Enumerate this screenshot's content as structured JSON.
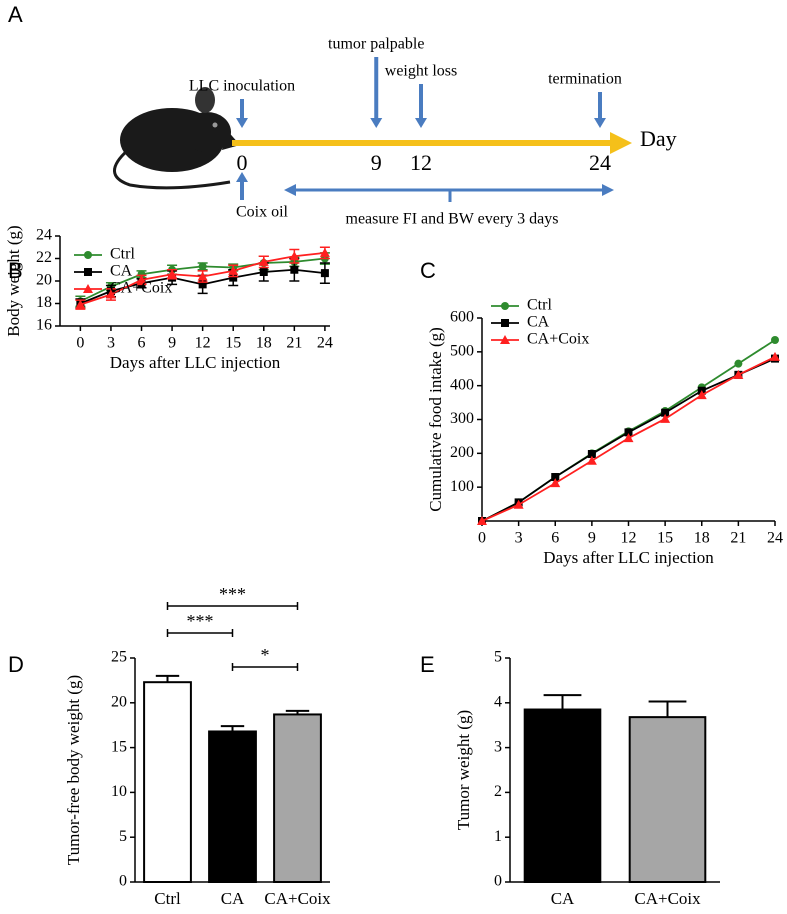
{
  "timeline": {
    "panel": "A",
    "unit": "Day",
    "events": [
      {
        "label": "LLC inoculation",
        "day": 0
      },
      {
        "label": "tumor palpable",
        "day": 9
      },
      {
        "label": "weight loss",
        "day": 12
      },
      {
        "label": "termination",
        "day": 24
      }
    ],
    "treatment": "Coix oil",
    "measurement": "measure FI and BW every 3 days"
  },
  "chart_data": [
    {
      "panel": "B",
      "type": "line",
      "ylabel": "Body weight (g)",
      "xlabel": "Days after LLC injection",
      "x": [
        0,
        3,
        6,
        9,
        12,
        15,
        18,
        21,
        24
      ],
      "xlim": [
        -2,
        24.5
      ],
      "xticks": [
        0,
        3,
        6,
        9,
        12,
        15,
        18,
        21,
        24
      ],
      "ylim": [
        16,
        24
      ],
      "yticks": [
        16,
        18,
        20,
        22,
        24
      ],
      "series": [
        {
          "name": "Ctrl",
          "color": "#2e8b2e",
          "marker": "circle",
          "values": [
            18.2,
            19.5,
            20.6,
            21.0,
            21.3,
            21.2,
            21.6,
            21.7,
            22.0
          ],
          "errors": [
            0.45,
            0.35,
            0.3,
            0.4,
            0.3,
            0.3,
            0.6,
            0.4,
            0.5
          ]
        },
        {
          "name": "CA",
          "color": "#000000",
          "marker": "square",
          "values": [
            18.0,
            19.1,
            19.8,
            20.3,
            19.7,
            20.3,
            20.8,
            21.0,
            20.7
          ],
          "errors": [
            0.4,
            0.5,
            0.4,
            0.6,
            0.8,
            0.7,
            0.8,
            1.0,
            0.9
          ]
        },
        {
          "name": "CA+Coix",
          "color": "#ff2020",
          "marker": "triangle",
          "values": [
            17.9,
            18.8,
            20.1,
            20.6,
            20.4,
            20.9,
            21.7,
            22.2,
            22.5
          ],
          "errors": [
            0.4,
            0.5,
            0.4,
            0.4,
            0.5,
            0.5,
            0.5,
            0.6,
            0.5
          ]
        }
      ]
    },
    {
      "panel": "C",
      "type": "line",
      "ylabel": "Cumulative food intake (g)",
      "xlabel": "Days after LLC injection",
      "x": [
        0,
        3,
        6,
        9,
        12,
        15,
        18,
        21,
        24
      ],
      "xlim": [
        0,
        24
      ],
      "xticks": [
        0,
        3,
        6,
        9,
        12,
        15,
        18,
        21,
        24
      ],
      "ylim": [
        0,
        600
      ],
      "yticks": [
        100,
        200,
        300,
        400,
        500,
        600
      ],
      "series": [
        {
          "name": "Ctrl",
          "color": "#2e8b2e",
          "marker": "circle",
          "values": [
            0,
            55,
            130,
            200,
            265,
            325,
            395,
            465,
            535
          ]
        },
        {
          "name": "CA",
          "color": "#000000",
          "marker": "square",
          "values": [
            0,
            55,
            130,
            198,
            262,
            320,
            385,
            432,
            480
          ]
        },
        {
          "name": "CA+Coix",
          "color": "#ff2020",
          "marker": "triangle",
          "values": [
            0,
            48,
            112,
            178,
            245,
            302,
            372,
            432,
            485
          ]
        }
      ]
    },
    {
      "panel": "D",
      "type": "bar",
      "ylabel": "Tumor-free body weight (g)",
      "categories": [
        "Ctrl",
        "CA",
        "CA+Coix"
      ],
      "values": [
        22.3,
        16.8,
        18.7
      ],
      "errors": [
        0.7,
        0.6,
        0.4
      ],
      "colors": [
        "#ffffff",
        "#000000",
        "#a6a6a6"
      ],
      "ylim": [
        0,
        25
      ],
      "yticks": [
        0,
        5,
        10,
        15,
        20,
        25
      ],
      "significance": [
        {
          "between": [
            0,
            1
          ],
          "label": "***"
        },
        {
          "between": [
            0,
            2
          ],
          "label": "***"
        },
        {
          "between": [
            1,
            2
          ],
          "label": "*"
        }
      ]
    },
    {
      "panel": "E",
      "type": "bar",
      "ylabel": "Tumor weight (g)",
      "categories": [
        "CA",
        "CA+Coix"
      ],
      "values": [
        3.85,
        3.68
      ],
      "errors": [
        0.32,
        0.35
      ],
      "colors": [
        "#000000",
        "#a6a6a6"
      ],
      "ylim": [
        0,
        5
      ],
      "yticks": [
        0,
        1,
        2,
        3,
        4,
        5
      ]
    }
  ]
}
